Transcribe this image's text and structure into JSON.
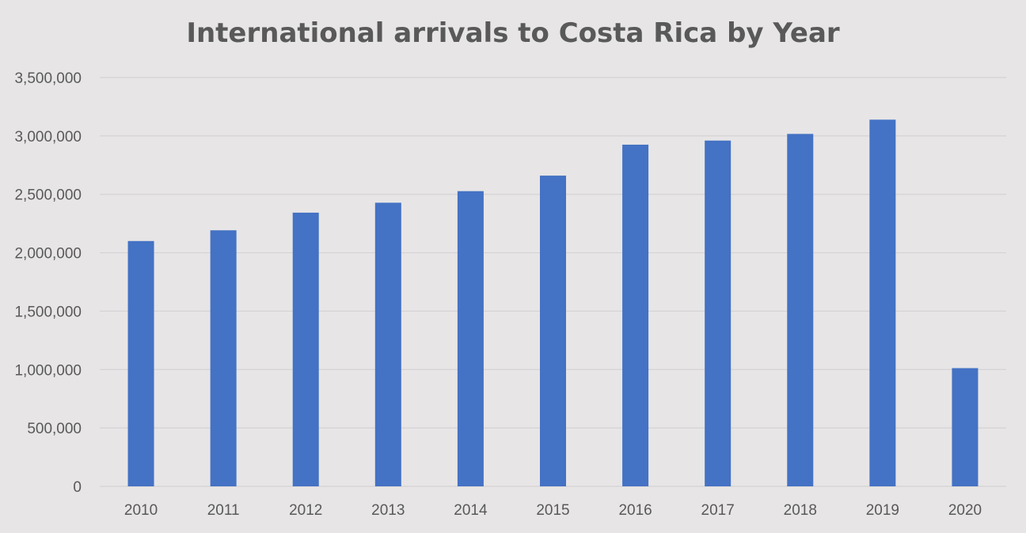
{
  "chart_data": {
    "type": "bar",
    "title": "International arrivals to Costa Rica by Year",
    "xlabel": "",
    "ylabel": "",
    "categories": [
      "2010",
      "2011",
      "2012",
      "2013",
      "2014",
      "2015",
      "2016",
      "2017",
      "2018",
      "2019",
      "2020"
    ],
    "series": [
      {
        "values": [
          2100000,
          2192000,
          2343000,
          2428000,
          2527000,
          2660000,
          2925000,
          2960000,
          3017000,
          3139000,
          1012000
        ],
        "color": "#4472c4"
      }
    ],
    "ylim": [
      0,
      3500000
    ],
    "yticks": [
      0,
      500000,
      1000000,
      1500000,
      2000000,
      2500000,
      3000000,
      3500000
    ],
    "ytick_labels": [
      "0",
      "500,000",
      "1,000,000",
      "1,500,000",
      "2,000,000",
      "2,500,000",
      "3,000,000",
      "3,500,000"
    ],
    "grid": true,
    "legend": "none",
    "background_color": "#e7e5e6",
    "grid_color": "#d4d2d3",
    "text_color": "#595959"
  }
}
